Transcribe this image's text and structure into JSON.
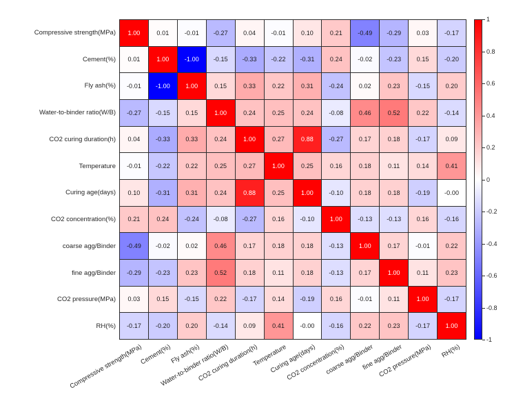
{
  "chart_data": {
    "type": "heatmap",
    "title": "",
    "description": "Pearson correlation coefficient matrix heatmap",
    "variables": [
      "Compressive strength(MPa)",
      "Cement(%)",
      "Fly ash(%)",
      "Water-to-binder ratio(W/B)",
      "CO2 curing duration(h)",
      "Temperature",
      "Curing age(days)",
      "CO2 concentration(%)",
      "coarse agg/Binder",
      "fine agg/Binder",
      "CO2 pressure(MPa)",
      "RH(%)"
    ],
    "matrix": [
      [
        "1.00",
        "0.01",
        "-0.01",
        "-0.27",
        "0.04",
        "-0.01",
        "0.10",
        "0.21",
        "-0.49",
        "-0.29",
        "0.03",
        "-0.17"
      ],
      [
        "0.01",
        "1.00",
        "-1.00",
        "-0.15",
        "-0.33",
        "-0.22",
        "-0.31",
        "0.24",
        "-0.02",
        "-0.23",
        "0.15",
        "-0.20"
      ],
      [
        "-0.01",
        "-1.00",
        "1.00",
        "0.15",
        "0.33",
        "0.22",
        "0.31",
        "-0.24",
        "0.02",
        "0.23",
        "-0.15",
        "0.20"
      ],
      [
        "-0.27",
        "-0.15",
        "0.15",
        "1.00",
        "0.24",
        "0.25",
        "0.24",
        "-0.08",
        "0.46",
        "0.52",
        "0.22",
        "-0.14"
      ],
      [
        "0.04",
        "-0.33",
        "0.33",
        "0.24",
        "1.00",
        "0.27",
        "0.88",
        "-0.27",
        "0.17",
        "0.18",
        "-0.17",
        "0.09"
      ],
      [
        "-0.01",
        "-0.22",
        "0.22",
        "0.25",
        "0.27",
        "1.00",
        "0.25",
        "0.16",
        "0.18",
        "0.11",
        "0.14",
        "0.41"
      ],
      [
        "0.10",
        "-0.31",
        "0.31",
        "0.24",
        "0.88",
        "0.25",
        "1.00",
        "-0.10",
        "0.18",
        "0.18",
        "-0.19",
        "-0.00"
      ],
      [
        "0.21",
        "0.24",
        "-0.24",
        "-0.08",
        "-0.27",
        "0.16",
        "-0.10",
        "1.00",
        "-0.13",
        "-0.13",
        "0.16",
        "-0.16"
      ],
      [
        "-0.49",
        "-0.02",
        "0.02",
        "0.46",
        "0.17",
        "0.18",
        "0.18",
        "-0.13",
        "1.00",
        "0.17",
        "-0.01",
        "0.22"
      ],
      [
        "-0.29",
        "-0.23",
        "0.23",
        "0.52",
        "0.18",
        "0.11",
        "0.18",
        "-0.13",
        "0.17",
        "1.00",
        "0.11",
        "0.23"
      ],
      [
        "0.03",
        "0.15",
        "-0.15",
        "0.22",
        "-0.17",
        "0.14",
        "-0.19",
        "0.16",
        "-0.01",
        "0.11",
        "1.00",
        "-0.17"
      ],
      [
        "-0.17",
        "-0.20",
        "0.20",
        "-0.14",
        "0.09",
        "0.41",
        "-0.00",
        "-0.16",
        "0.22",
        "0.23",
        "-0.17",
        "1.00"
      ]
    ],
    "colorbar": {
      "min": -1,
      "max": 1,
      "ticks": [
        "1",
        "0.8",
        "0.6",
        "0.4",
        "0.2",
        "0",
        "-0.2",
        "-0.4",
        "-0.6",
        "-0.8",
        "-1"
      ],
      "legend_position": "right"
    },
    "colors": {
      "positive_end": "#ff0000",
      "zero": "#ffffff",
      "negative_end": "#0000ff",
      "grid_line": "#2e2e2e",
      "label_text": "#262626",
      "cell_text_dark": "#1a1a1a",
      "cell_text_light": "#ffffff"
    },
    "layout_hints": {
      "grid_on": true,
      "x_tick_rotation_deg": 30
    }
  }
}
